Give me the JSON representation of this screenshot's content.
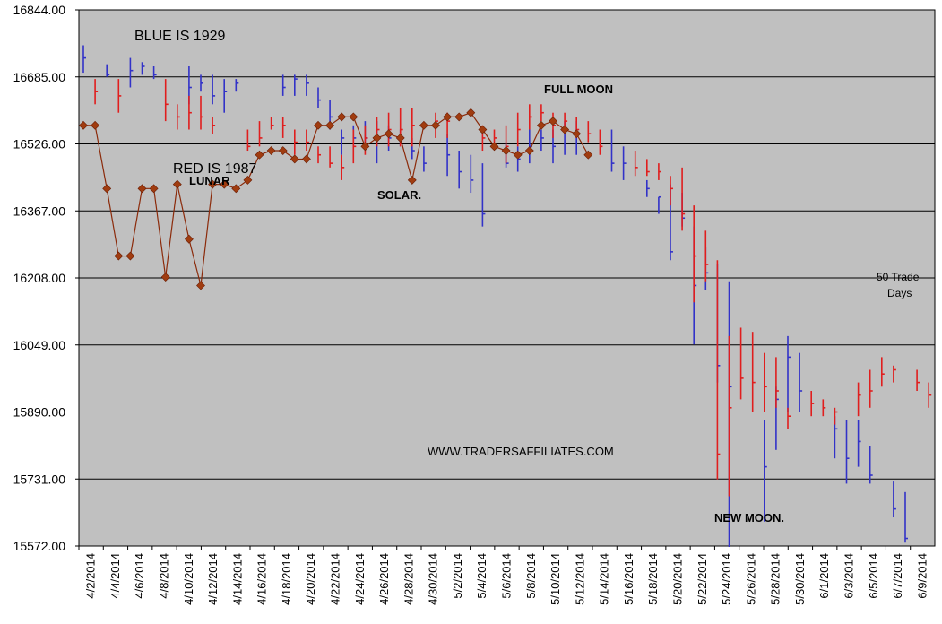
{
  "chart_data": {
    "type": "line",
    "title": "",
    "xlabel": "",
    "ylabel": "",
    "ylim": [
      15572.0,
      16844.0
    ],
    "y_ticks": [
      "15572.00",
      "15731.00",
      "15890.00",
      "16049.00",
      "16208.00",
      "16367.00",
      "16526.00",
      "16685.00",
      "16844.00"
    ],
    "x_ticks": [
      "4/2/2014",
      "4/4/2014",
      "4/6/2014",
      "4/8/2014",
      "4/10/2014",
      "4/12/2014",
      "4/14/2014",
      "4/16/2014",
      "4/18/2014",
      "4/20/2014",
      "4/22/2014",
      "4/24/2014",
      "4/26/2014",
      "4/28/2014",
      "4/30/2014",
      "5/2/2014",
      "5/4/2014",
      "5/6/2014",
      "5/8/2014",
      "5/10/2014",
      "5/12/2014",
      "5/14/2014",
      "5/16/2014",
      "5/18/2014",
      "5/20/2014",
      "5/22/2014",
      "5/24/2014",
      "5/26/2014",
      "5/28/2014",
      "5/30/2014",
      "6/1/2014",
      "6/3/2014",
      "6/5/2014",
      "6/7/2014",
      "6/9/2014"
    ],
    "grid": true,
    "legend": "none",
    "colors": {
      "plot_bg": "#c0c0c0",
      "blue": "#3232c8",
      "red": "#e01e1e",
      "line": "#8b2a0a",
      "marker": "#a03c10"
    },
    "annotations": {
      "blue_label": "BLUE IS 1929",
      "red_label": "RED IS 1987",
      "lunar": "LUNAR",
      "solar": "SOLAR.",
      "full_moon": "FULL MOON",
      "new_moon": "NEW MOON.",
      "website": "WWW.TRADERSAFFILIATES.COM",
      "trade_days_1": "50 Trade",
      "trade_days_2": "Days"
    },
    "series": [
      {
        "name": "1929",
        "style": "hlc-bars",
        "color": "blue",
        "bars": [
          [
            0,
            16760,
            16695,
            16730
          ],
          [
            2,
            16715,
            16685,
            16690
          ],
          [
            4,
            16730,
            16660,
            16700
          ],
          [
            5,
            16720,
            16690,
            16710
          ],
          [
            6,
            16710,
            16680,
            16690
          ],
          [
            9,
            16710,
            16620,
            16660
          ],
          [
            10,
            16690,
            16650,
            16670
          ],
          [
            11,
            16690,
            16620,
            16640
          ],
          [
            12,
            16680,
            16600,
            16650
          ],
          [
            13,
            16680,
            16650,
            16670
          ],
          [
            17,
            16690,
            16640,
            16660
          ],
          [
            18,
            16690,
            16640,
            16680
          ],
          [
            19,
            16690,
            16640,
            16670
          ],
          [
            20,
            16660,
            16610,
            16630
          ],
          [
            21,
            16630,
            16560,
            16590
          ],
          [
            22,
            16560,
            16500,
            16540
          ],
          [
            23,
            16570,
            16520,
            16540
          ],
          [
            24,
            16580,
            16520,
            16540
          ],
          [
            25,
            16580,
            16480,
            16540
          ],
          [
            26,
            16570,
            16510,
            16540
          ],
          [
            27,
            16560,
            16520,
            16540
          ],
          [
            28,
            16540,
            16490,
            16510
          ],
          [
            29,
            16520,
            16460,
            16480
          ],
          [
            31,
            16550,
            16450,
            16500
          ],
          [
            32,
            16510,
            16420,
            16460
          ],
          [
            33,
            16500,
            16410,
            16440
          ],
          [
            34,
            16480,
            16330,
            16360
          ],
          [
            36,
            16530,
            16470,
            16480
          ],
          [
            37,
            16520,
            16460,
            16490
          ],
          [
            38,
            16560,
            16480,
            16520
          ],
          [
            39,
            16560,
            16510,
            16540
          ],
          [
            40,
            16560,
            16480,
            16520
          ],
          [
            41,
            16580,
            16500,
            16560
          ],
          [
            42,
            16580,
            16500,
            16550
          ],
          [
            45,
            16560,
            16460,
            16480
          ],
          [
            46,
            16520,
            16440,
            16480
          ],
          [
            48,
            16440,
            16400,
            16420
          ],
          [
            49,
            16400,
            16360,
            16400
          ],
          [
            50,
            16430,
            16250,
            16270
          ],
          [
            51,
            16410,
            16330,
            16350
          ],
          [
            52,
            16330,
            16050,
            16190
          ],
          [
            53,
            16280,
            16180,
            16220
          ],
          [
            54,
            16240,
            15960,
            16000
          ],
          [
            55,
            16200,
            15570,
            15950
          ],
          [
            58,
            15870,
            15630,
            15760
          ],
          [
            59,
            15950,
            15800,
            15920
          ],
          [
            60,
            16070,
            15890,
            16020
          ],
          [
            61,
            16030,
            15890,
            15940
          ],
          [
            64,
            15880,
            15780,
            15850
          ],
          [
            65,
            15870,
            15720,
            15780
          ],
          [
            66,
            15870,
            15760,
            15820
          ],
          [
            67,
            15810,
            15720,
            15740
          ],
          [
            69,
            15725,
            15640,
            15660
          ],
          [
            70,
            15700,
            15580,
            15590
          ]
        ]
      },
      {
        "name": "1987",
        "style": "hlc-bars",
        "color": "red",
        "bars": [
          [
            1,
            16680,
            16620,
            16650
          ],
          [
            3,
            16680,
            16600,
            16640
          ],
          [
            7,
            16680,
            16580,
            16620
          ],
          [
            8,
            16620,
            16560,
            16590
          ],
          [
            9,
            16640,
            16560,
            16600
          ],
          [
            10,
            16640,
            16560,
            16590
          ],
          [
            11,
            16590,
            16550,
            16570
          ],
          [
            14,
            16560,
            16510,
            16520
          ],
          [
            15,
            16580,
            16520,
            16540
          ],
          [
            16,
            16590,
            16560,
            16570
          ],
          [
            17,
            16590,
            16540,
            16570
          ],
          [
            18,
            16560,
            16500,
            16530
          ],
          [
            19,
            16560,
            16510,
            16530
          ],
          [
            20,
            16520,
            16480,
            16500
          ],
          [
            21,
            16520,
            16470,
            16480
          ],
          [
            22,
            16500,
            16440,
            16470
          ],
          [
            23,
            16560,
            16480,
            16520
          ],
          [
            24,
            16570,
            16500,
            16540
          ],
          [
            25,
            16590,
            16520,
            16560
          ],
          [
            26,
            16600,
            16520,
            16560
          ],
          [
            27,
            16610,
            16520,
            16560
          ],
          [
            28,
            16610,
            16520,
            16570
          ],
          [
            30,
            16600,
            16540,
            16580
          ],
          [
            31,
            16600,
            16540,
            16580
          ],
          [
            34,
            16570,
            16510,
            16540
          ],
          [
            35,
            16560,
            16520,
            16540
          ],
          [
            36,
            16570,
            16480,
            16520
          ],
          [
            37,
            16600,
            16520,
            16560
          ],
          [
            38,
            16620,
            16560,
            16590
          ],
          [
            39,
            16620,
            16580,
            16600
          ],
          [
            40,
            16600,
            16540,
            16570
          ],
          [
            41,
            16600,
            16560,
            16580
          ],
          [
            42,
            16590,
            16540,
            16560
          ],
          [
            43,
            16580,
            16530,
            16550
          ],
          [
            44,
            16560,
            16500,
            16520
          ],
          [
            47,
            16510,
            16450,
            16470
          ],
          [
            48,
            16490,
            16450,
            16460
          ],
          [
            49,
            16480,
            16440,
            16460
          ],
          [
            50,
            16450,
            16380,
            16420
          ],
          [
            51,
            16470,
            16320,
            16360
          ],
          [
            52,
            16380,
            16150,
            16260
          ],
          [
            53,
            16320,
            16200,
            16240
          ],
          [
            54,
            16250,
            15730,
            15790
          ],
          [
            55,
            16070,
            15690,
            15900
          ],
          [
            56,
            16090,
            15920,
            15970
          ],
          [
            57,
            16080,
            15890,
            15960
          ],
          [
            58,
            16030,
            15890,
            15950
          ],
          [
            59,
            16020,
            15900,
            15940
          ],
          [
            60,
            15900,
            15850,
            15880
          ],
          [
            62,
            15940,
            15880,
            15910
          ],
          [
            63,
            15920,
            15880,
            15900
          ],
          [
            64,
            15900,
            15860,
            15890
          ],
          [
            66,
            15960,
            15880,
            15930
          ],
          [
            67,
            15990,
            15900,
            15940
          ],
          [
            68,
            16020,
            15950,
            15980
          ],
          [
            69,
            16000,
            15960,
            15990
          ],
          [
            71,
            15990,
            15940,
            15960
          ],
          [
            72,
            15960,
            15900,
            15930
          ]
        ]
      },
      {
        "name": "lunar-solar",
        "style": "line-markers",
        "color": "line",
        "x": [
          0,
          1,
          2,
          3,
          4,
          5,
          6,
          7,
          8,
          9,
          10,
          11,
          12,
          13,
          14,
          15,
          16,
          17,
          18,
          19,
          20,
          21,
          22,
          23,
          24,
          25,
          26,
          27,
          28,
          29,
          30,
          31,
          32,
          33,
          34,
          35,
          36,
          37,
          38,
          39,
          40,
          41,
          42,
          43
        ],
        "values": [
          16570,
          16570,
          16420,
          16260,
          16260,
          16420,
          16420,
          16210,
          16430,
          16300,
          16190,
          16430,
          16430,
          16420,
          16440,
          16500,
          16510,
          16510,
          16490,
          16490,
          16570,
          16570,
          16590,
          16590,
          16520,
          16540,
          16550,
          16540,
          16440,
          16570,
          16570,
          16590,
          16590,
          16600,
          16560,
          16520,
          16510,
          16500,
          16510,
          16570,
          16580,
          16560,
          16550,
          16500
        ]
      }
    ]
  }
}
